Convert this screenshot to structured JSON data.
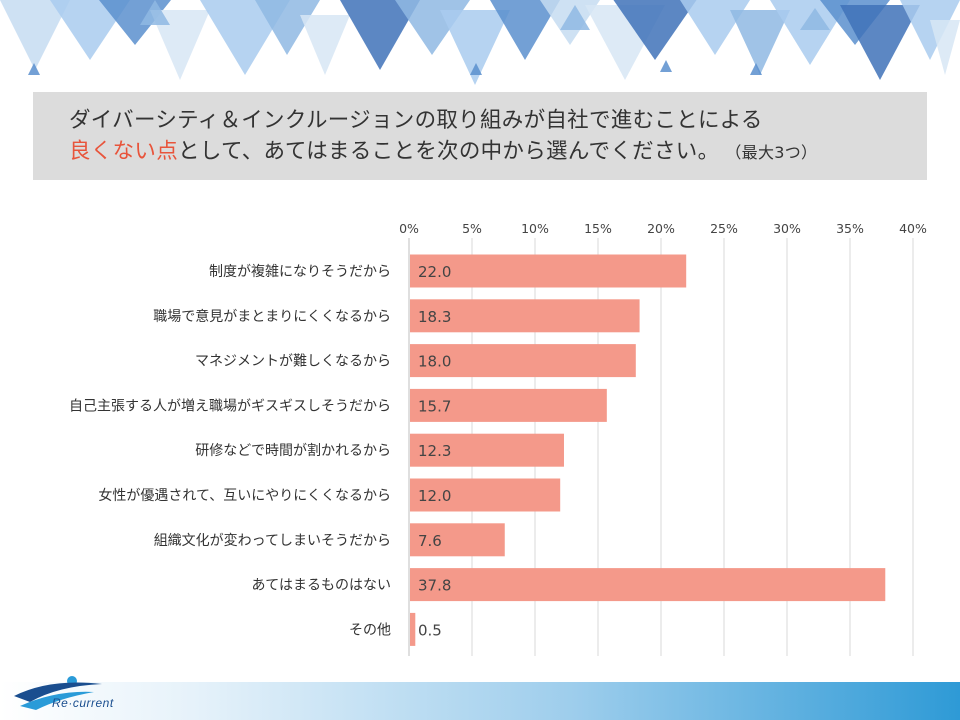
{
  "title": {
    "line1": "ダイバーシティ＆インクルージョンの取り組みが自社で進むことによる",
    "line2_highlight": "良くない点",
    "line2_rest": "として、あてはまることを次の中から選んでください。",
    "line2_note": "（最大3つ）"
  },
  "colors": {
    "bar": "#f4998a",
    "highlight": "#e8543b",
    "title_bg": "#dcdcdc"
  },
  "logo": {
    "text": "Re·current"
  },
  "chart_data": {
    "type": "bar",
    "orientation": "horizontal",
    "categories": [
      "制度が複雑になりそうだから",
      "職場で意見がまとまりにくくなるから",
      "マネジメントが難しくなるから",
      "自己主張する人が増え職場がギスギスしそうだから",
      "研修などで時間が割かれるから",
      "女性が優遇されて、互いにやりにくくなるから",
      "組織文化が変わってしまいそうだから",
      "あてはまるものはない",
      "その他"
    ],
    "values": [
      22.0,
      18.3,
      18.0,
      15.7,
      12.3,
      12.0,
      7.6,
      37.8,
      0.5
    ],
    "value_labels": [
      "22.0",
      "18.3",
      "18.0",
      "15.7",
      "12.3",
      "12.0",
      "7.6",
      "37.8",
      "0.5"
    ],
    "xlim": [
      0,
      40
    ],
    "xticks": [
      "0%",
      "5%",
      "10%",
      "15%",
      "20%",
      "25%",
      "30%",
      "35%",
      "40%"
    ],
    "xtick_values": [
      0,
      5,
      10,
      15,
      20,
      25,
      30,
      35,
      40
    ],
    "grid": true,
    "legend": "none"
  }
}
